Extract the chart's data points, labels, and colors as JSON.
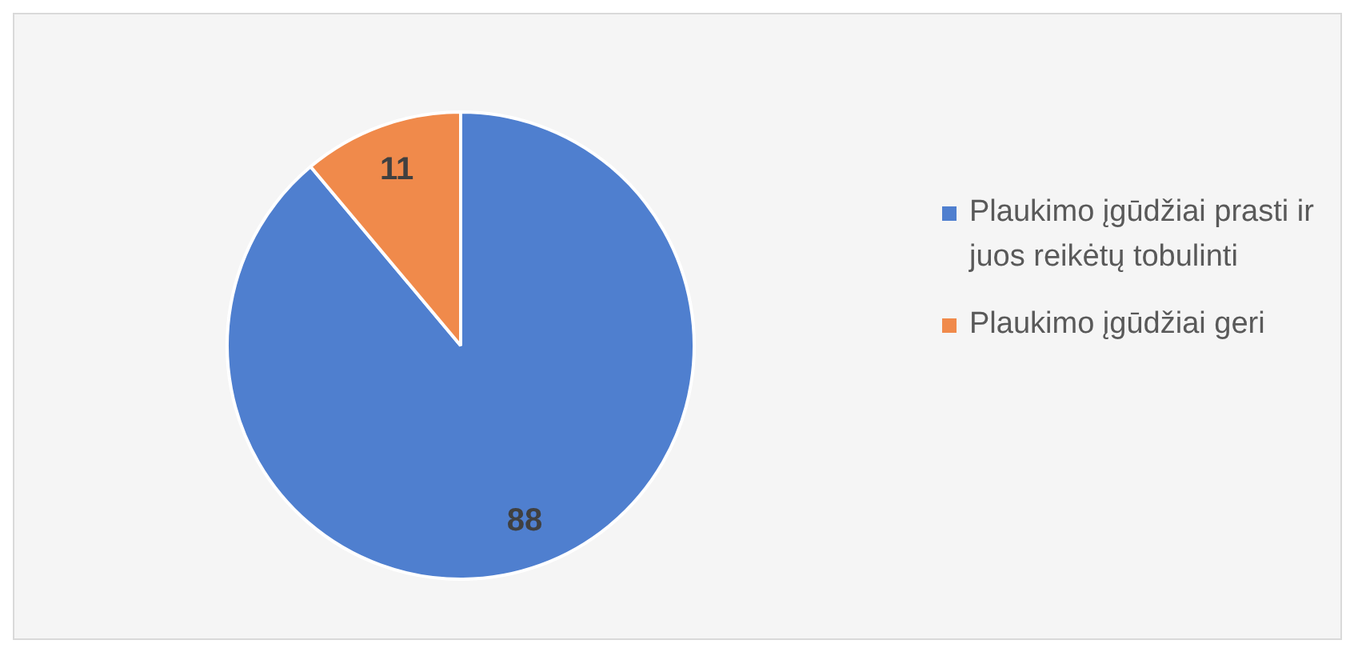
{
  "chart_data": {
    "type": "pie",
    "categories": [
      "Plaukimo įgūdžiai prasti ir juos reikėtų tobulinti",
      "Plaukimo įgūdžiai geri"
    ],
    "values": [
      88,
      11
    ],
    "colors": [
      "#4f7fcf",
      "#f08a4b"
    ],
    "data_labels": true,
    "legend": "right"
  }
}
